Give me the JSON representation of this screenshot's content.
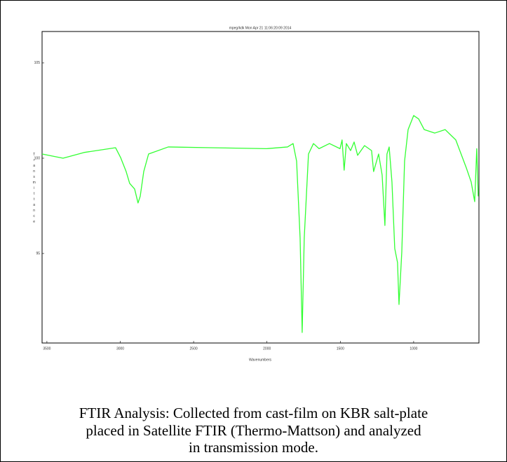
{
  "chart_data": {
    "type": "line",
    "title": "mpeg/kdk  Mon Apr 21 11:06:20:09 2014",
    "x_label": "Wavenumbers",
    "y_label": "Transmittance",
    "xlim": [
      3533,
      555
    ],
    "ylim": [
      90.3,
      106.65
    ],
    "xticks": [
      3500,
      3000,
      2500,
      2000,
      1500,
      1000
    ],
    "yticks": [
      95,
      100,
      105
    ],
    "grid": false,
    "series": [
      {
        "name": "Spectrum",
        "color": "#33ff33",
        "x": [
          3533,
          3390,
          3247,
          3032,
          2998,
          2960,
          2936,
          2902,
          2879,
          2864,
          2840,
          2807,
          2673,
          2386,
          2004,
          1860,
          1822,
          1798,
          1774,
          1760,
          1746,
          1717,
          1683,
          1645,
          1574,
          1502,
          1488,
          1474,
          1459,
          1430,
          1406,
          1382,
          1335,
          1287,
          1273,
          1239,
          1215,
          1196,
          1182,
          1167,
          1148,
          1129,
          1110,
          1100,
          1081,
          1062,
          1038,
          1000,
          966,
          928,
          856,
          785,
          713,
          641,
          608,
          584,
          570,
          560
        ],
        "values": [
          100.22,
          100.0,
          100.3,
          100.55,
          100.04,
          99.3,
          98.68,
          98.38,
          97.65,
          98.0,
          99.3,
          100.22,
          100.59,
          100.55,
          100.5,
          100.59,
          100.77,
          99.85,
          95.8,
          90.85,
          95.8,
          100.22,
          100.77,
          100.5,
          100.77,
          100.5,
          100.96,
          99.37,
          100.77,
          100.4,
          100.85,
          100.15,
          100.66,
          100.4,
          99.3,
          100.22,
          99.12,
          96.47,
          100.22,
          100.59,
          98.75,
          95.26,
          94.52,
          92.32,
          95.07,
          99.85,
          101.5,
          102.24,
          102.06,
          101.5,
          101.32,
          101.5,
          100.96,
          99.49,
          98.75,
          97.72,
          100.5,
          98.0
        ]
      }
    ]
  },
  "caption": [
    "FTIR Analysis: Collected from cast-film on KBR salt-plate",
    "placed in Satellite FTIR (Thermo-Mattson) and analyzed",
    "in transmission mode."
  ]
}
